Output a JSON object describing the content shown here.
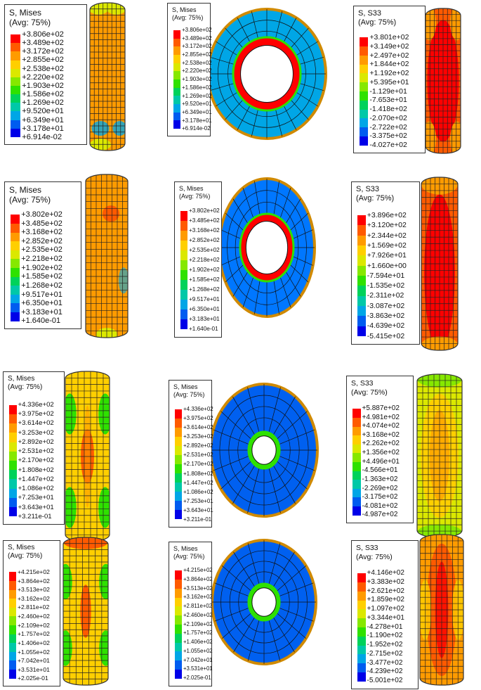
{
  "palette": [
    "#ff0000",
    "#ff5a00",
    "#ff9b00",
    "#ffcf00",
    "#dbe800",
    "#86e800",
    "#2fe100",
    "#00d25a",
    "#00c8a8",
    "#00a6e6",
    "#005cf0",
    "#0000e8"
  ],
  "panels": [
    {
      "title1": "S, Mises",
      "title2": "(Avg: 75%)",
      "labels": [
        "+3.806e+02",
        "+3.489e+02",
        "+3.172e+02",
        "+2.855e+02",
        "+2.538e+02",
        "+2.220e+02",
        "+1.903e+02",
        "+1.586e+02",
        "+1.269e+02",
        "+9.520e+01",
        "+6.349e+01",
        "+3.178e+01",
        "+6.914e-02"
      ]
    },
    {
      "title1": "S, Mises",
      "title2": "(Avg: 75%)",
      "labels": [
        "+3.806e+02",
        "+3.489e+02",
        "+3.172e+02",
        "+2.855e+02",
        "+2.538e+02",
        "+2.220e+02",
        "+1.903e+02",
        "+1.586e+02",
        "+1.269e+02",
        "+9.520e+01",
        "+6.349e+01",
        "+3.178e+01",
        "+6.914e-02"
      ]
    },
    {
      "title1": "S, S33",
      "title2": "(Avg: 75%)",
      "labels": [
        "+3.801e+02",
        "+3.149e+02",
        "+2.497e+02",
        "+1.844e+02",
        "+1.192e+02",
        "+5.395e+01",
        "-1.129e+01",
        "-7.653e+01",
        "-1.418e+02",
        "-2.070e+02",
        "-2.722e+02",
        "-3.375e+02",
        "-4.027e+02"
      ]
    },
    {
      "title1": "S, Mises",
      "title2": "(Avg: 75%)",
      "labels": [
        "+3.802e+02",
        "+3.485e+02",
        "+3.168e+02",
        "+2.852e+02",
        "+2.535e+02",
        "+2.218e+02",
        "+1.902e+02",
        "+1.585e+02",
        "+1.268e+02",
        "+9.517e+01",
        "+6.350e+01",
        "+3.183e+01",
        "+1.640e-01"
      ]
    },
    {
      "title1": "S, Mises",
      "title2": "(Avg: 75%)",
      "labels": [
        "+3.802e+02",
        "+3.485e+02",
        "+3.168e+02",
        "+2.852e+02",
        "+2.535e+02",
        "+2.218e+02",
        "+1.902e+02",
        "+1.585e+02",
        "+1.268e+02",
        "+9.517e+01",
        "+6.350e+01",
        "+3.183e+01",
        "+1.640e-01"
      ]
    },
    {
      "title1": "S, S33",
      "title2": "(Avg: 75%)",
      "labels": [
        "+3.896e+02",
        "+3.120e+02",
        "+2.344e+02",
        "+1.569e+02",
        "+7.926e+01",
        "+1.660e+00",
        "-7.594e+01",
        "-1.535e+02",
        "-2.311e+02",
        "-3.087e+02",
        "-3.863e+02",
        "-4.639e+02",
        "-5.415e+02"
      ]
    },
    {
      "title1": "S, Mises",
      "title2": "(Avg: 75%)",
      "labels": [
        "+4.336e+02",
        "+3.975e+02",
        "+3.614e+02",
        "+3.253e+02",
        "+2.892e+02",
        "+2.531e+02",
        "+2.170e+02",
        "+1.808e+02",
        "+1.447e+02",
        "+1.086e+02",
        "+7.253e+01",
        "+3.643e+01",
        "+3.211e-01"
      ]
    },
    {
      "title1": "S, Mises",
      "title2": "(Avg: 75%)",
      "labels": [
        "+4.336e+02",
        "+3.975e+02",
        "+3.614e+02",
        "+3.253e+02",
        "+2.892e+02",
        "+2.531e+02",
        "+2.170e+02",
        "+1.808e+02",
        "+1.447e+02",
        "+1.086e+02",
        "+7.253e+01",
        "+3.643e+01",
        "+3.211e-01"
      ]
    },
    {
      "title1": "S, S33",
      "title2": "(Avg: 75%)",
      "labels": [
        "+5.887e+02",
        "+4.981e+02",
        "+4.074e+02",
        "+3.168e+02",
        "+2.262e+02",
        "+1.356e+02",
        "+4.496e+01",
        "-4.566e+01",
        "-1.363e+02",
        "-2.269e+02",
        "-3.175e+02",
        "-4.081e+02",
        "-4.987e+02"
      ]
    },
    {
      "title1": "S, Mises",
      "title2": "(Avg: 75%)",
      "labels": [
        "+4.215e+02",
        "+3.864e+02",
        "+3.513e+02",
        "+3.162e+02",
        "+2.811e+02",
        "+2.460e+02",
        "+2.109e+02",
        "+1.757e+02",
        "+1.406e+02",
        "+1.055e+02",
        "+7.042e+01",
        "+3.531e+01",
        "+2.025e-01"
      ]
    },
    {
      "title1": "S, Mises",
      "title2": "(Avg: 75%)",
      "labels": [
        "+4.215e+02",
        "+3.864e+02",
        "+3.513e+02",
        "+3.162e+02",
        "+2.811e+02",
        "+2.460e+02",
        "+2.109e+02",
        "+1.757e+02",
        "+1.406e+02",
        "+1.055e+02",
        "+7.042e+01",
        "+3.531e+01",
        "+2.025e-01"
      ]
    },
    {
      "title1": "S, S33",
      "title2": "(Avg: 75%)",
      "labels": [
        "+4.146e+02",
        "+3.383e+02",
        "+2.621e+02",
        "+1.859e+02",
        "+1.097e+02",
        "+3.344e+01",
        "-4.278e+01",
        "-1.190e+02",
        "-1.952e+02",
        "-2.715e+02",
        "-3.477e+02",
        "-4.239e+02",
        "-5.001e+02"
      ]
    }
  ]
}
